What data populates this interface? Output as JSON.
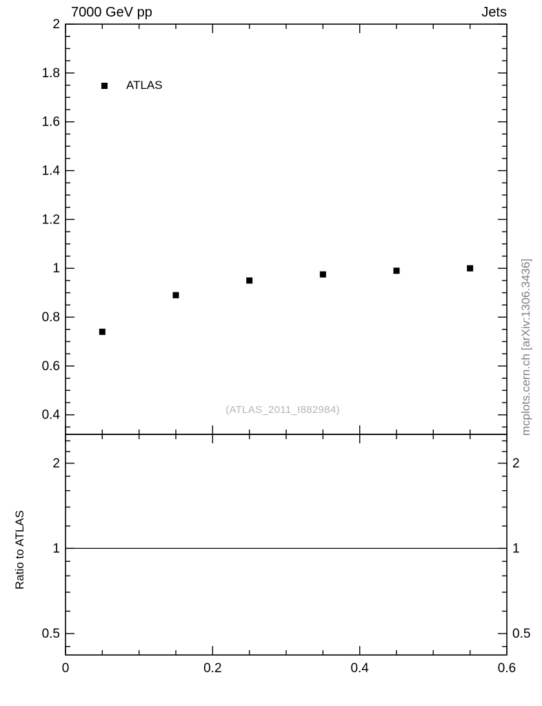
{
  "chart_data": {
    "type": "scatter",
    "title": "7000 GeV pp",
    "right_label": "Jets",
    "annotation": "(ATLAS_2011_I882984)",
    "side_label": "mcplots.cern.ch [arXiv:1306.3436]",
    "grid": false,
    "xlim": [
      0,
      0.6
    ],
    "xticks": [
      0,
      0.2,
      0.4,
      0.6
    ],
    "x_minor_step": 0.05,
    "legend": [
      {
        "label": "ATLAS",
        "marker": "square",
        "color": "#000000"
      }
    ],
    "main_panel": {
      "yscale": "linear",
      "ylim": [
        0.32,
        2.0
      ],
      "yticks": [
        0.4,
        0.6,
        0.8,
        1,
        1.2,
        1.4,
        1.6,
        1.8,
        2
      ],
      "y_minor_step": 0.05,
      "series": [
        {
          "name": "ATLAS",
          "marker": "square",
          "color": "#000000",
          "x": [
            0.05,
            0.15,
            0.25,
            0.35,
            0.45,
            0.55
          ],
          "y": [
            0.74,
            0.89,
            0.95,
            0.975,
            0.99,
            1.0
          ]
        }
      ]
    },
    "ratio_panel": {
      "ylabel": "Ratio to ATLAS",
      "yscale": "log",
      "ylim": [
        0.42,
        2.53
      ],
      "yticks": [
        0.5,
        1,
        2
      ],
      "y_minor_ticks": [
        0.45,
        0.6,
        0.7,
        0.8,
        0.9,
        1.2,
        1.4,
        1.6,
        1.8,
        2.2,
        2.4
      ],
      "reference_line_y": 1
    }
  }
}
